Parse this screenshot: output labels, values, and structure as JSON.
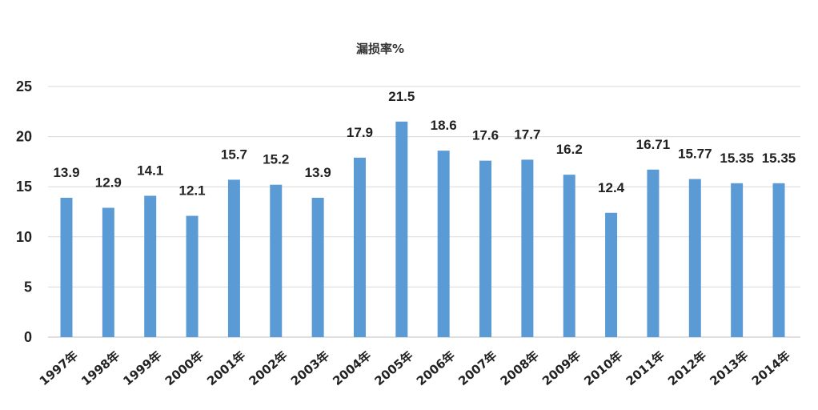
{
  "chart_data": {
    "type": "bar",
    "title": "漏损率%",
    "xlabel": "",
    "ylabel": "",
    "ylim": [
      0,
      25
    ],
    "yticks": [
      0,
      5,
      10,
      15,
      20,
      25
    ],
    "grid": true,
    "legend": "none",
    "bar_color": "#5b9bd5",
    "categories": [
      "1997年",
      "1998年",
      "1999年",
      "2000年",
      "2001年",
      "2002年",
      "2003年",
      "2004年",
      "2005年",
      "2006年",
      "2007年",
      "2008年",
      "2009年",
      "2010年",
      "2011年",
      "2012年",
      "2013年",
      "2014年"
    ],
    "values": [
      13.9,
      12.9,
      14.1,
      12.1,
      15.7,
      15.2,
      13.9,
      17.9,
      21.5,
      18.6,
      17.6,
      17.7,
      16.2,
      12.4,
      16.71,
      15.77,
      15.35,
      15.35
    ],
    "data_labels": [
      "13.9",
      "12.9",
      "14.1",
      "12.1",
      "15.7",
      "15.2",
      "13.9",
      "17.9",
      "21.5",
      "18.6",
      "17.6",
      "17.7",
      "16.2",
      "12.4",
      "16.71",
      "15.77",
      "15.35",
      "15.35"
    ]
  }
}
